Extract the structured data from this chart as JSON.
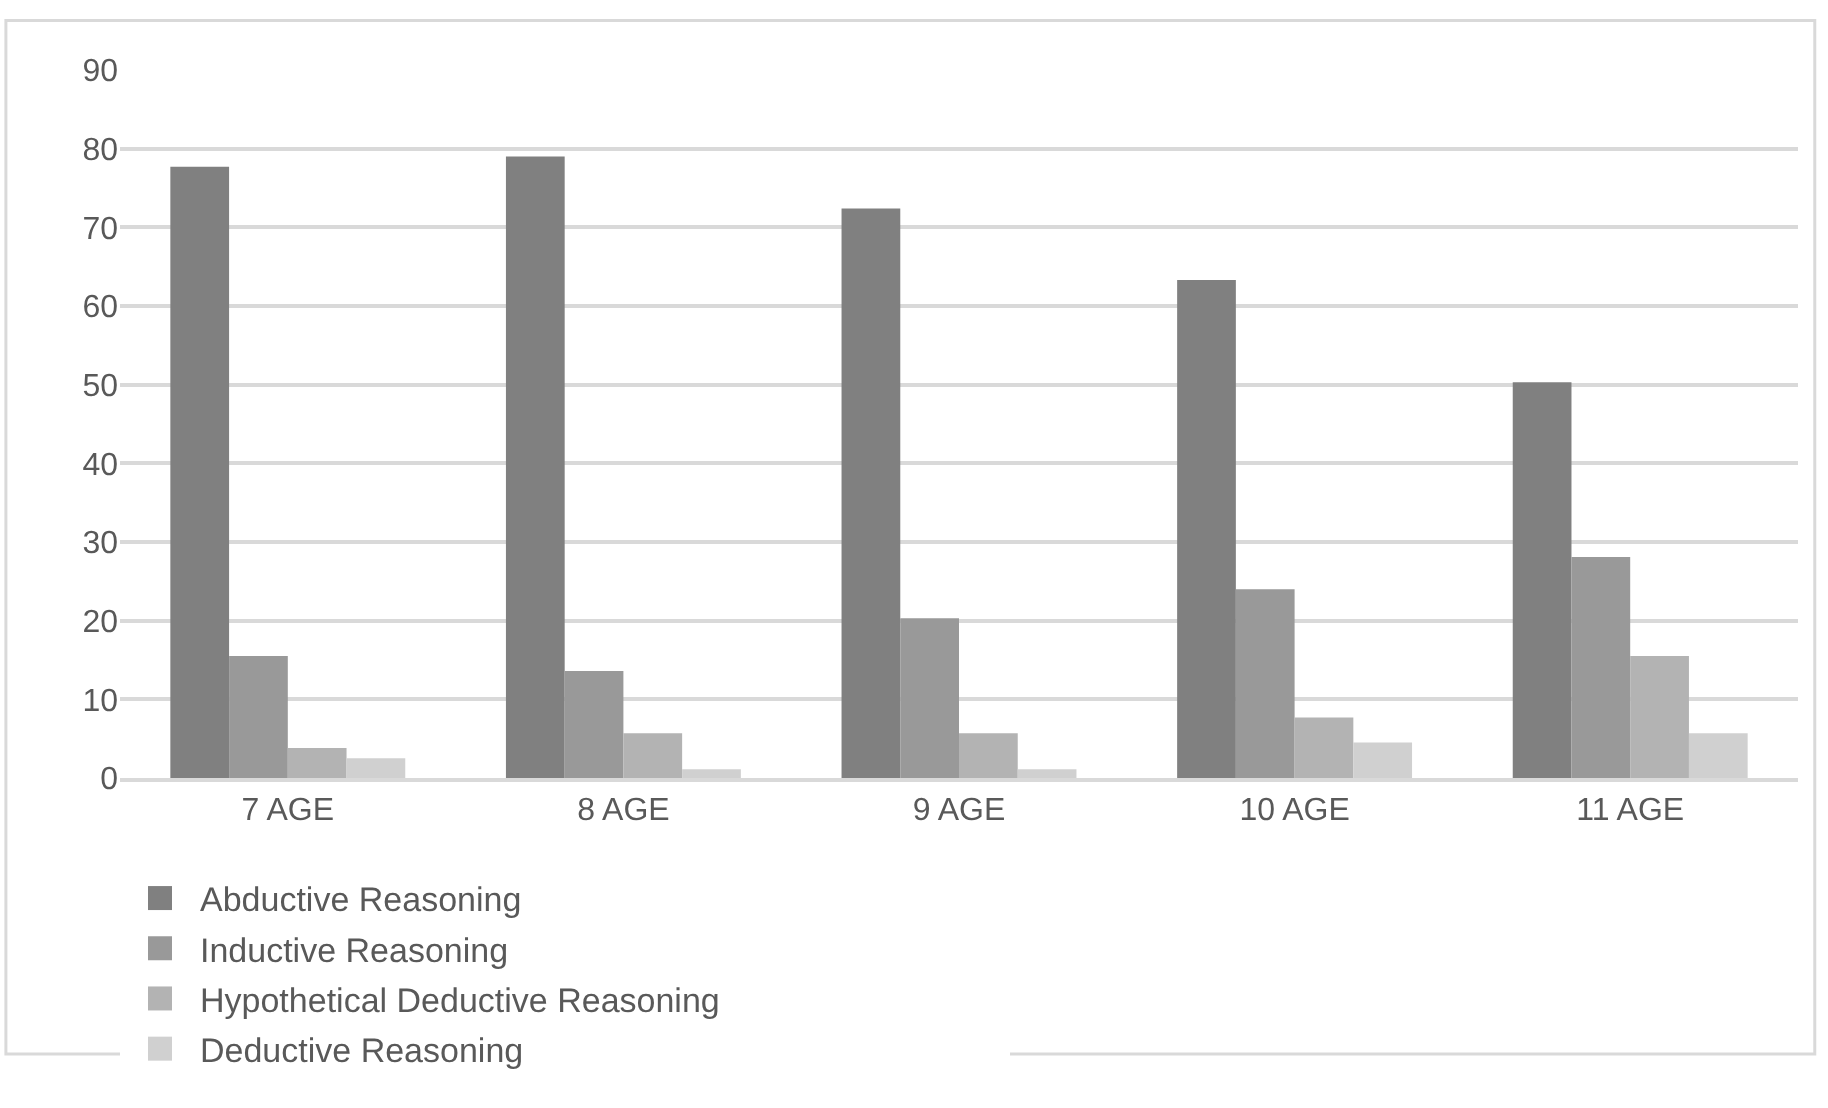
{
  "chart_data": {
    "type": "bar",
    "categories": [
      "7 AGE",
      "8 AGE",
      "9 AGE",
      "10 AGE",
      "11 AGE"
    ],
    "series": [
      {
        "name": "Abductive Reasoning",
        "color": "#808080",
        "values": [
          77.7,
          79.0,
          72.4,
          63.3,
          50.3
        ]
      },
      {
        "name": "Inductive Reasoning",
        "color": "#999999",
        "values": [
          15.5,
          13.6,
          20.3,
          24.0,
          28.1
        ]
      },
      {
        "name": "Hypothetical Deductive Reasoning",
        "color": "#b3b3b3",
        "values": [
          3.8,
          5.7,
          5.7,
          7.7,
          15.5
        ]
      },
      {
        "name": "Deductive Reasoning",
        "color": "#d0d0d0",
        "values": [
          2.5,
          1.1,
          1.1,
          4.5,
          5.7
        ]
      }
    ],
    "ylim": [
      0,
      90
    ],
    "yticks": [
      0,
      10,
      20,
      30,
      40,
      50,
      60,
      70,
      80,
      90
    ],
    "grid": "y",
    "legend": "bottom"
  }
}
